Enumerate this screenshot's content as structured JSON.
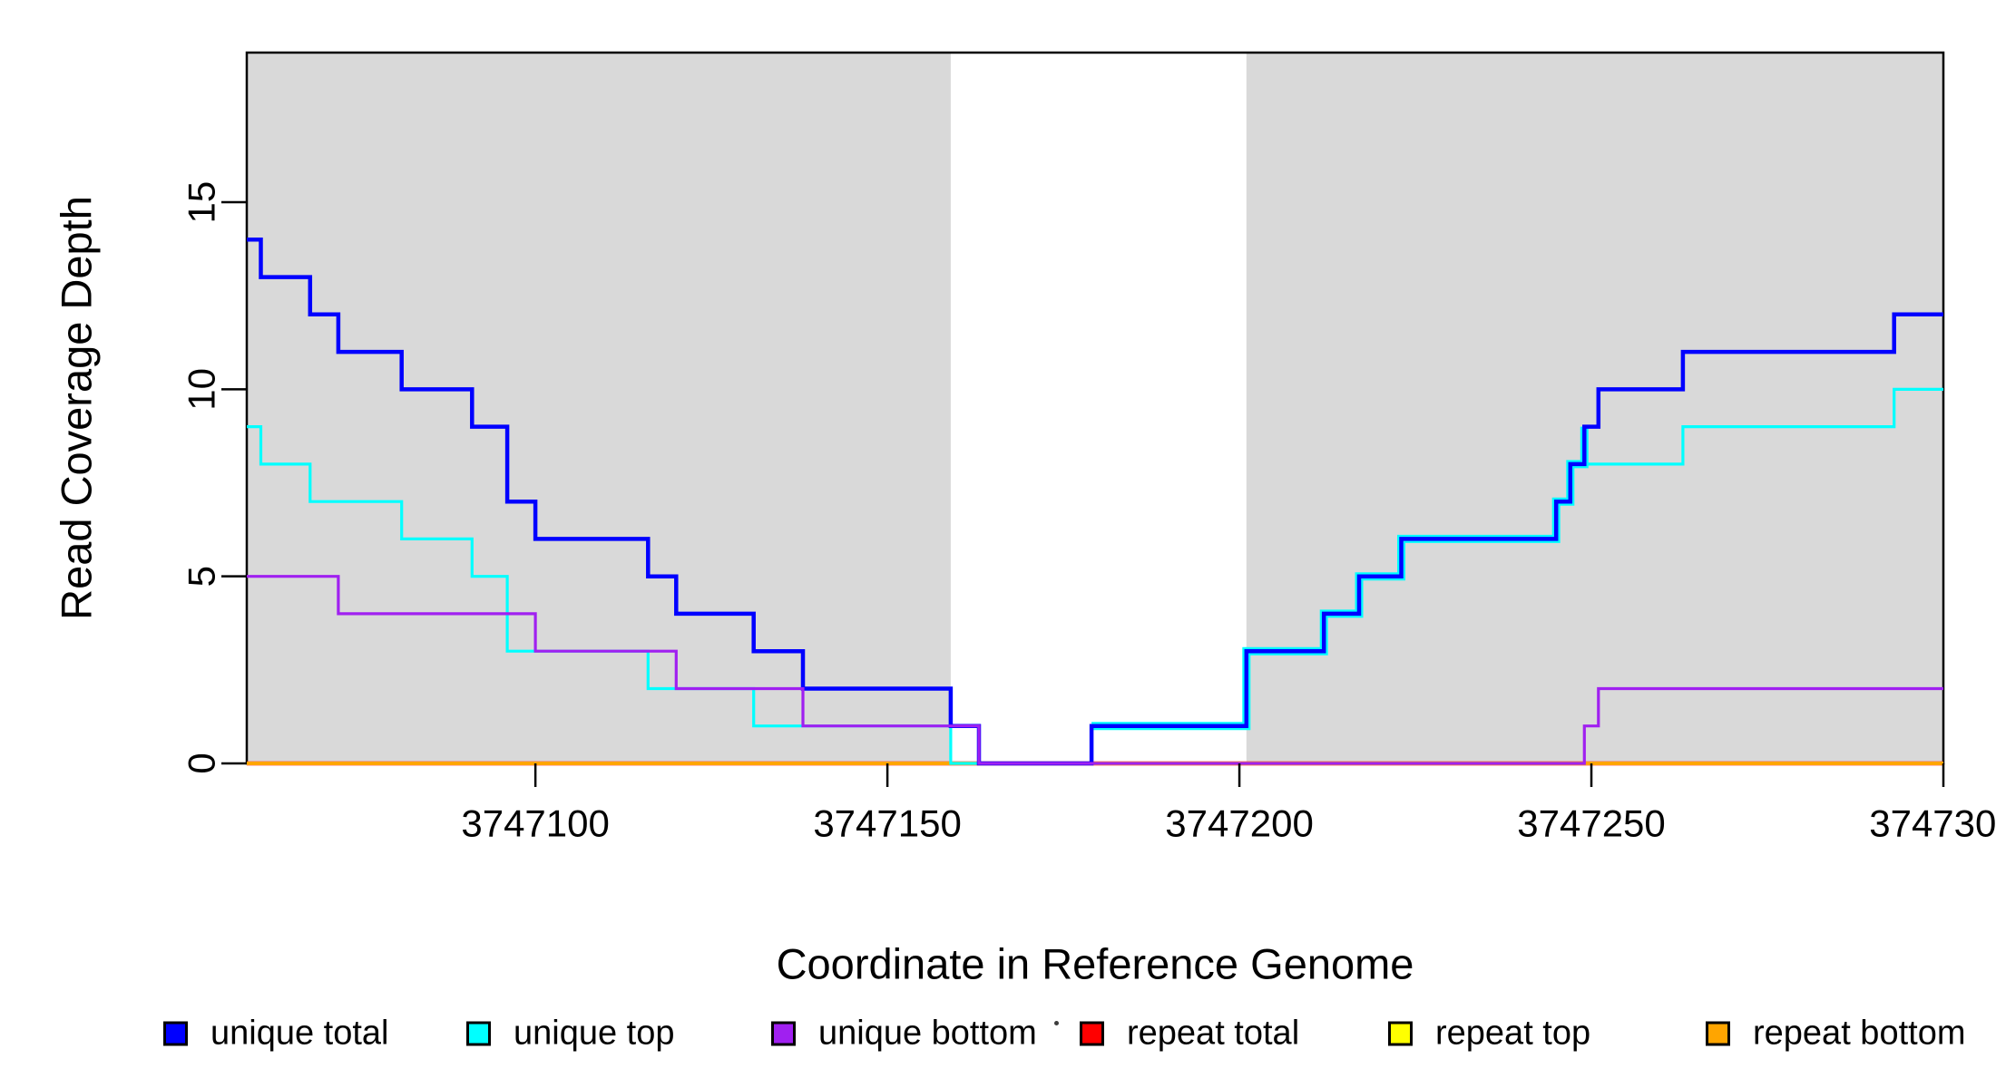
{
  "chart_data": {
    "type": "line",
    "subtype": "step-coverage-plot",
    "title": "",
    "xlabel": "Coordinate in Reference Genome",
    "ylabel": "Read Coverage Depth",
    "xlim": [
      3747059,
      3747300
    ],
    "ylim": [
      0,
      19
    ],
    "grid": false,
    "background_color": "#FFFFFF",
    "shaded_band_color": "#D9D9D9",
    "shaded_regions": [
      {
        "from": 3747059,
        "to": 3747159
      },
      {
        "from": 3747201,
        "to": 3747300
      }
    ],
    "x_ticks": [
      {
        "value": 3747100,
        "label": "3747100"
      },
      {
        "value": 3747150,
        "label": "3747150"
      },
      {
        "value": 3747200,
        "label": "3747200"
      },
      {
        "value": 3747250,
        "label": "3747250"
      },
      {
        "value": 3747300,
        "label": "3747300"
      }
    ],
    "y_ticks": [
      {
        "value": 0,
        "label": "0"
      },
      {
        "value": 5,
        "label": "5"
      },
      {
        "value": 10,
        "label": "10"
      },
      {
        "value": 15,
        "label": "15"
      }
    ],
    "series": [
      {
        "name": "repeat top",
        "color": "#FFFF00",
        "width": 3,
        "steps": [
          [
            3747059,
            0
          ]
        ]
      },
      {
        "name": "repeat total",
        "color": "#FF0000",
        "width": 4.5,
        "steps": [
          [
            3747059,
            0
          ]
        ]
      },
      {
        "name": "repeat bottom",
        "color": "#FFA500",
        "width": 4,
        "steps": [
          [
            3747059,
            0
          ]
        ]
      },
      {
        "name": "unique top",
        "color": "#00FFFF",
        "width": 3.2,
        "steps": [
          [
            3747059,
            9
          ],
          [
            3747061,
            8
          ],
          [
            3747068,
            7
          ],
          [
            3747081,
            6
          ],
          [
            3747091,
            5
          ],
          [
            3747096,
            3
          ],
          [
            3747116,
            2
          ],
          [
            3747131,
            1
          ],
          [
            3747159,
            0
          ],
          [
            3747179,
            1
          ],
          [
            3747201,
            3
          ],
          [
            3747212,
            4
          ],
          [
            3747217,
            5
          ],
          [
            3747223,
            6
          ],
          [
            3747245,
            7
          ],
          [
            3747247,
            8
          ],
          [
            3747263,
            9
          ],
          [
            3747293,
            10
          ]
        ]
      },
      {
        "name": "unique total",
        "color": "#0000FF",
        "width": 4.5,
        "halo_with": "unique top",
        "halo_width": 9,
        "steps": [
          [
            3747059,
            14
          ],
          [
            3747061,
            13
          ],
          [
            3747068,
            12
          ],
          [
            3747072,
            11
          ],
          [
            3747081,
            10
          ],
          [
            3747091,
            9
          ],
          [
            3747096,
            7
          ],
          [
            3747100,
            6
          ],
          [
            3747116,
            5
          ],
          [
            3747120,
            4
          ],
          [
            3747131,
            3
          ],
          [
            3747138,
            2
          ],
          [
            3747159,
            1
          ],
          [
            3747163,
            0
          ],
          [
            3747179,
            1
          ],
          [
            3747201,
            3
          ],
          [
            3747212,
            4
          ],
          [
            3747217,
            5
          ],
          [
            3747223,
            6
          ],
          [
            3747245,
            7
          ],
          [
            3747247,
            8
          ],
          [
            3747249,
            9
          ],
          [
            3747251,
            10
          ],
          [
            3747263,
            11
          ],
          [
            3747293,
            12
          ]
        ]
      },
      {
        "name": "unique bottom",
        "color": "#A020F0",
        "width": 3.2,
        "steps": [
          [
            3747059,
            5
          ],
          [
            3747072,
            4
          ],
          [
            3747100,
            3
          ],
          [
            3747120,
            2
          ],
          [
            3747138,
            1
          ],
          [
            3747163,
            0
          ],
          [
            3747249,
            1
          ],
          [
            3747251,
            2
          ]
        ]
      }
    ],
    "legend": {
      "position": "bottom",
      "items": [
        {
          "label": "unique total",
          "color": "#0000FF"
        },
        {
          "label": "unique top",
          "color": "#00FFFF"
        },
        {
          "label": "unique bottom",
          "color": "#A020F0"
        },
        {
          "label": "repeat total",
          "color": "#FF0000"
        },
        {
          "label": "repeat top",
          "color": "#FFFF00"
        },
        {
          "label": "repeat bottom",
          "color": "#FFA500"
        }
      ],
      "stray_dot_artifact": true
    }
  }
}
